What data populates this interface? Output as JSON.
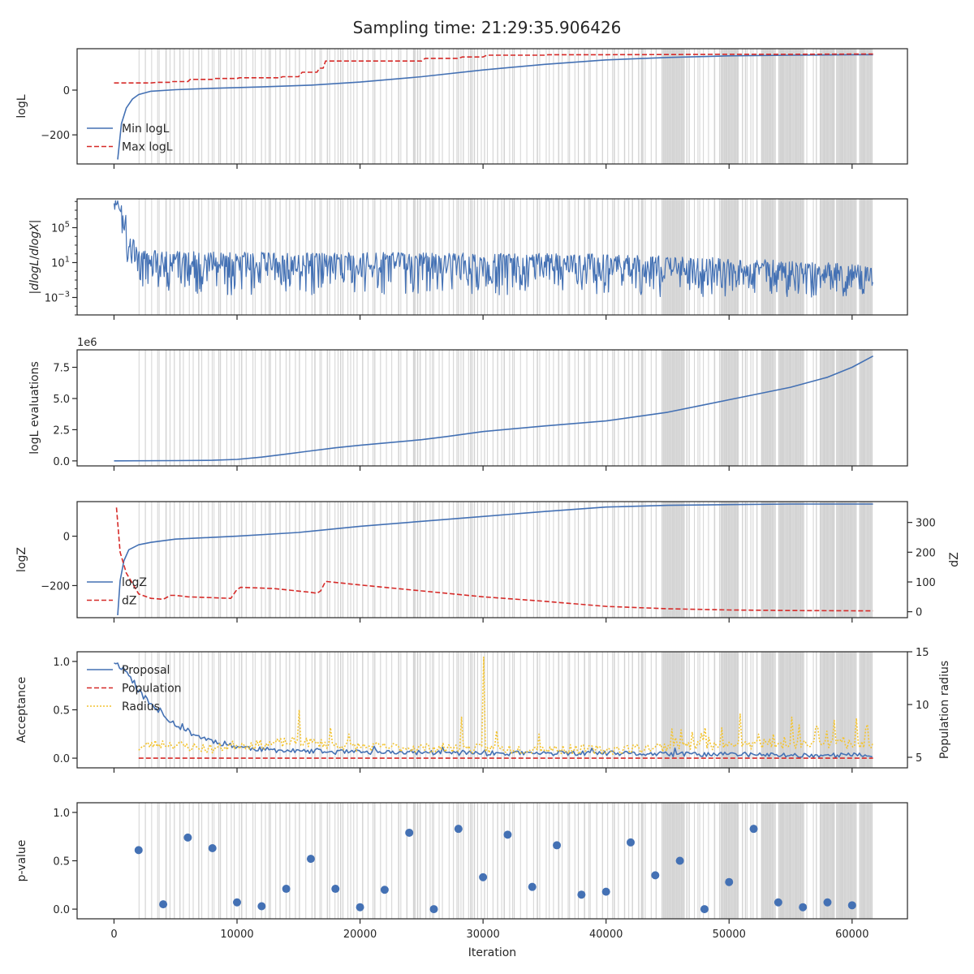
{
  "title": "Sampling time: 21:29:35.906426",
  "colors": {
    "blue": "#4471b4",
    "red": "#d62a28",
    "yellow": "#f4c430",
    "band": "#d3d3d3",
    "axis": "#262626"
  },
  "chart_data": [
    {
      "type": "line",
      "panel": "logL",
      "ylabel": "logL",
      "xlim": [
        -3000,
        64500
      ],
      "ylim": [
        -330,
        185
      ],
      "yticks": [
        0,
        -200
      ],
      "ytick_labels": [
        "0",
        "−200"
      ],
      "legend": {
        "placement": "lower-left",
        "entries": [
          "Min logL",
          "Max logL"
        ]
      },
      "series": [
        {
          "name": "Min logL",
          "style": "solid",
          "color": "blue",
          "x": [
            300,
            600,
            1000,
            1500,
            2000,
            3000,
            5000,
            8000,
            12000,
            16000,
            20000,
            25000,
            30000,
            35000,
            40000,
            45000,
            50000,
            55000,
            60000,
            61700
          ],
          "y": [
            -310,
            -150,
            -80,
            -40,
            -20,
            -5,
            2,
            8,
            14,
            22,
            36,
            60,
            90,
            115,
            135,
            146,
            153,
            156,
            158,
            158
          ]
        },
        {
          "name": "Max logL",
          "style": "dashed",
          "color": "red",
          "x": [
            0,
            3000,
            3500,
            4500,
            4600,
            6000,
            6200,
            8000,
            8200,
            10000,
            10200,
            13500,
            13700,
            15000,
            15300,
            16500,
            16700,
            17000,
            17200,
            25000,
            25300,
            28000,
            28300,
            30000,
            30300,
            35000,
            35300,
            40000,
            45000,
            50000,
            55000,
            60000,
            61700
          ],
          "y": [
            32,
            32,
            35,
            35,
            38,
            38,
            48,
            48,
            52,
            52,
            55,
            55,
            60,
            60,
            80,
            80,
            98,
            98,
            130,
            130,
            142,
            142,
            148,
            148,
            156,
            156,
            158,
            158,
            159,
            160,
            160,
            161,
            161
          ]
        }
      ]
    },
    {
      "type": "line",
      "panel": "dlogL/dlogX",
      "ylabel": "|dlogL/dlogX|",
      "yscale": "log",
      "xlim": [
        -3000,
        64500
      ],
      "ylim": [
        1e-05,
        200000000
      ],
      "yticks": [
        100000,
        10,
        0.001
      ],
      "ytick_labels": [
        "10^5",
        "10^1",
        "10^-3"
      ],
      "series": [
        {
          "name": "",
          "style": "noisy",
          "color": "blue",
          "x": [
            0,
            1000,
            2000,
            5000,
            10000,
            20000,
            30000,
            40000,
            45000,
            50000,
            55000,
            60000,
            61700
          ],
          "y_center": [
            50000000,
            100,
            20,
            8,
            6,
            5,
            4,
            3,
            2,
            1.3,
            0.6,
            0.3,
            0.25
          ],
          "y_low": [
            10000,
            1,
            0.02,
            0.002,
            0.002,
            0.002,
            0.002,
            0.002,
            0.001,
            0.001,
            0.001,
            0.001,
            0.002
          ],
          "y_high": [
            100000000,
            10000,
            300,
            200,
            150,
            150,
            120,
            100,
            60,
            30,
            15,
            6,
            4
          ]
        }
      ]
    },
    {
      "type": "line",
      "panel": "logL evaluations",
      "ylabel": "logL evaluations",
      "offset_label": "1e6",
      "xlim": [
        -3000,
        64500
      ],
      "ylim": [
        -0.4,
        8.9
      ],
      "yticks": [
        0,
        2.5,
        5.0,
        7.5
      ],
      "ytick_labels": [
        "0.0",
        "2.5",
        "5.0",
        "7.5"
      ],
      "series": [
        {
          "name": "",
          "style": "solid",
          "color": "blue",
          "x": [
            0,
            5000,
            8000,
            10000,
            12000,
            14000,
            16000,
            18000,
            20000,
            25000,
            27000,
            30000,
            35000,
            40000,
            45000,
            48000,
            50000,
            52000,
            55000,
            58000,
            60000,
            61700
          ],
          "y": [
            0,
            0.02,
            0.05,
            0.12,
            0.3,
            0.55,
            0.8,
            1.05,
            1.25,
            1.7,
            1.95,
            2.35,
            2.8,
            3.2,
            3.9,
            4.5,
            4.9,
            5.3,
            5.9,
            6.7,
            7.5,
            8.4
          ]
        }
      ]
    },
    {
      "type": "line",
      "panel": "logZ",
      "ylabel": "logZ",
      "ylabel_right": "dZ",
      "xlim": [
        -3000,
        64500
      ],
      "ylim": [
        -330,
        140
      ],
      "yticks": [
        0,
        -200
      ],
      "ytick_labels": [
        "0",
        "−200"
      ],
      "ylim_right": [
        -20,
        370
      ],
      "yticks_right": [
        0,
        100,
        200,
        300
      ],
      "ytick_labels_right": [
        "0",
        "100",
        "200",
        "300"
      ],
      "legend": {
        "placement": "lower-left",
        "entries": [
          "logZ",
          "dZ"
        ]
      },
      "series": [
        {
          "name": "logZ",
          "style": "solid",
          "color": "blue",
          "axis": "left",
          "x": [
            300,
            500,
            800,
            1200,
            2000,
            3000,
            5000,
            10000,
            15000,
            20000,
            25000,
            30000,
            35000,
            40000,
            45000,
            50000,
            55000,
            61700
          ],
          "y": [
            -320,
            -180,
            -100,
            -55,
            -35,
            -25,
            -12,
            0,
            15,
            40,
            60,
            80,
            100,
            118,
            125,
            128,
            130,
            130
          ]
        },
        {
          "name": "dZ",
          "style": "dashed",
          "color": "red",
          "axis": "right",
          "x": [
            200,
            500,
            1000,
            1500,
            2000,
            3000,
            4000,
            4600,
            5000,
            6000,
            9500,
            10000,
            10300,
            13000,
            16000,
            16500,
            16800,
            17200,
            20000,
            25000,
            30000,
            35000,
            40000,
            45000,
            50000,
            55000,
            61700
          ],
          "y": [
            350,
            200,
            130,
            95,
            60,
            45,
            42,
            55,
            55,
            50,
            45,
            75,
            82,
            78,
            65,
            62,
            70,
            102,
            90,
            70,
            50,
            35,
            18,
            10,
            6,
            4,
            3
          ]
        }
      ]
    },
    {
      "type": "line",
      "panel": "Acceptance",
      "ylabel": "Acceptance",
      "ylabel_right": "Population radius",
      "xlim": [
        -3000,
        64500
      ],
      "ylim": [
        -0.1,
        1.1
      ],
      "yticks": [
        0,
        0.5,
        1.0
      ],
      "ytick_labels": [
        "0.0",
        "0.5",
        "1.0"
      ],
      "ylim_right": [
        4,
        15
      ],
      "yticks_right": [
        5,
        10,
        15
      ],
      "ytick_labels_right": [
        "5",
        "10",
        "15"
      ],
      "legend": {
        "placement": "top-left",
        "entries": [
          "Proposal",
          "Population",
          "Radius"
        ]
      },
      "series": [
        {
          "name": "Proposal",
          "style": "solid",
          "color": "blue",
          "axis": "left",
          "x": [
            0,
            500,
            1000,
            1500,
            2000,
            3000,
            4000,
            5000,
            6000,
            7000,
            8000,
            10000,
            12000,
            15000,
            20000,
            25000,
            30000,
            35000,
            40000,
            45000,
            50000,
            55000,
            60000,
            61700
          ],
          "y": [
            1.0,
            0.95,
            0.9,
            0.8,
            0.7,
            0.55,
            0.45,
            0.35,
            0.28,
            0.22,
            0.18,
            0.12,
            0.09,
            0.07,
            0.06,
            0.06,
            0.05,
            0.05,
            0.05,
            0.04,
            0.04,
            0.03,
            0.03,
            0.03
          ]
        },
        {
          "name": "Population",
          "style": "dashed",
          "color": "red",
          "axis": "left",
          "x": [
            2000,
            61700
          ],
          "y": [
            0.0,
            0.0
          ]
        },
        {
          "name": "Radius",
          "style": "dotted",
          "color": "yellow",
          "axis": "right",
          "x": [
            2000,
            3000,
            4000,
            5000,
            6000,
            8000,
            10000,
            12000,
            15000,
            20000,
            25000,
            30000,
            35000,
            40000,
            45000,
            50000,
            55000,
            60000,
            61700
          ],
          "y": [
            5.9,
            6.2,
            6.3,
            6.2,
            6.0,
            5.8,
            6.2,
            6.2,
            6.5,
            6.0,
            5.9,
            5.8,
            5.8,
            5.7,
            6.0,
            6.2,
            6.2,
            6.3,
            6.3
          ],
          "spikes": [
            {
              "x": 15000,
              "y": 9.5
            },
            {
              "x": 17500,
              "y": 7.8
            },
            {
              "x": 19000,
              "y": 7.2
            },
            {
              "x": 28200,
              "y": 8.8
            },
            {
              "x": 30000,
              "y": 14.5
            },
            {
              "x": 31000,
              "y": 7.5
            },
            {
              "x": 34500,
              "y": 7.2
            },
            {
              "x": 46000,
              "y": 7.6
            },
            {
              "x": 48000,
              "y": 7.8
            },
            {
              "x": 50800,
              "y": 9.1
            },
            {
              "x": 53500,
              "y": 7.2
            },
            {
              "x": 55000,
              "y": 8.8
            },
            {
              "x": 57000,
              "y": 7.9
            },
            {
              "x": 58500,
              "y": 8.5
            },
            {
              "x": 60300,
              "y": 8.7
            },
            {
              "x": 61200,
              "y": 8.1
            }
          ]
        }
      ]
    },
    {
      "type": "scatter",
      "panel": "p-value",
      "ylabel": "p-value",
      "xlabel": "Iteration",
      "xlim": [
        -3000,
        64500
      ],
      "ylim": [
        -0.1,
        1.1
      ],
      "yticks": [
        0,
        0.5,
        1.0
      ],
      "ytick_labels": [
        "0.0",
        "0.5",
        "1.0"
      ],
      "xticks": [
        0,
        10000,
        20000,
        30000,
        40000,
        50000,
        60000
      ],
      "xtick_labels": [
        "0",
        "10000",
        "20000",
        "30000",
        "40000",
        "50000",
        "60000"
      ],
      "series": [
        {
          "name": "",
          "color": "blue",
          "x": [
            2000,
            4000,
            6000,
            8000,
            10000,
            12000,
            14000,
            16000,
            18000,
            20000,
            22000,
            24000,
            26000,
            28000,
            30000,
            32000,
            34000,
            36000,
            38000,
            40000,
            42000,
            44000,
            46000,
            48000,
            50000,
            52000,
            54000,
            56000,
            58000,
            60000
          ],
          "y": [
            0.61,
            0.05,
            0.74,
            0.63,
            0.07,
            0.03,
            0.21,
            0.52,
            0.21,
            0.02,
            0.2,
            0.79,
            0.0,
            0.83,
            0.33,
            0.77,
            0.23,
            0.66,
            0.15,
            0.18,
            0.69,
            0.35,
            0.5,
            0.0,
            0.28,
            0.83,
            0.07,
            0.02,
            0.07,
            0.04
          ]
        }
      ]
    }
  ]
}
